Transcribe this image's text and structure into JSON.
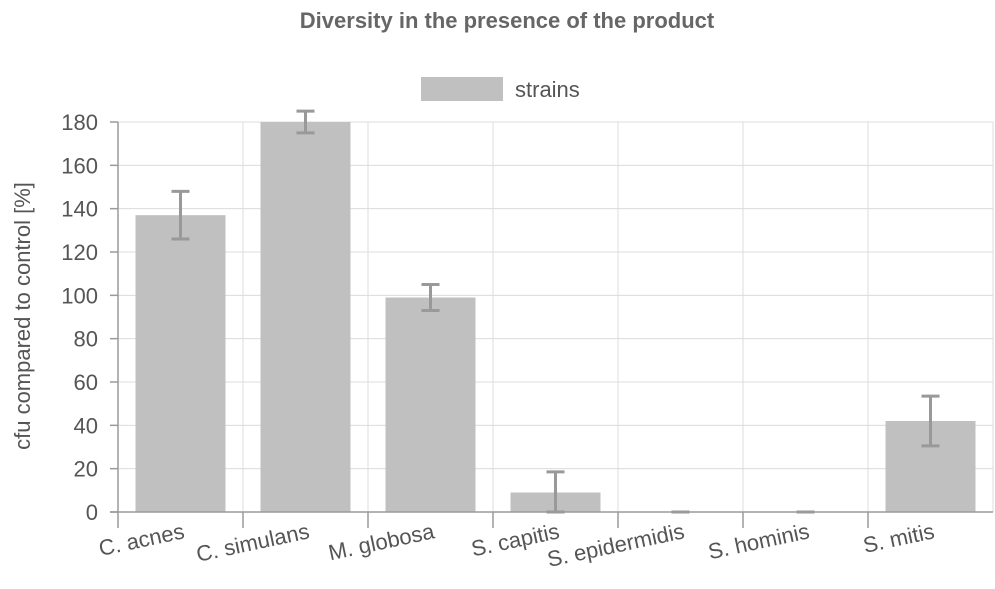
{
  "chart_data": {
    "type": "bar",
    "title": "Diversity in the presence of the product",
    "xlabel": "",
    "ylabel": "cfu compared to control [%]",
    "categories": [
      "C. acnes",
      "C. simulans",
      "M. globosa",
      "S. capitis",
      "S. epidermidis",
      "S. hominis",
      "S. mitis"
    ],
    "series": [
      {
        "name": "strains",
        "values": [
          137,
          180,
          99,
          9,
          0,
          0,
          42
        ],
        "error": [
          11,
          5,
          6,
          9.5,
          0,
          0,
          11.5
        ],
        "color": "#c0c0c0"
      }
    ],
    "ylim": [
      0,
      180
    ],
    "yticks": [
      0,
      20,
      40,
      60,
      80,
      100,
      120,
      140,
      160,
      180
    ],
    "grid": true,
    "legend_position": "top-center",
    "colors": {
      "bar": "#c0c0c0",
      "error_bar": "#999999",
      "text": "#555555",
      "title": "#666666"
    }
  }
}
